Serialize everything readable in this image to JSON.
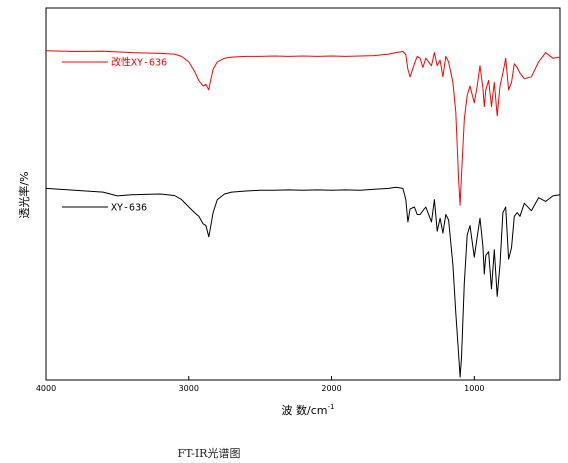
{
  "chart_data": {
    "type": "line",
    "xlabel": "波 数/cm",
    "xlabel_sup": "-1",
    "ylabel": "透光率/%",
    "caption": "FT-IR光谱图",
    "xlim": [
      4000,
      400
    ],
    "x_reversed": true,
    "x_ticks": [
      4000,
      3000,
      2000,
      1000
    ],
    "x_tick_labels": [
      "4000",
      "3000",
      "2000",
      "1000"
    ],
    "ylim": [
      0,
      100
    ],
    "y_ticks_shown": false,
    "grid": false,
    "legend_placement": "inline-left",
    "series": [
      {
        "name": "改性XY-636",
        "color": "#ff0000",
        "legend_y": 85.5,
        "x": [
          4000,
          3800,
          3600,
          3400,
          3200,
          3100,
          3050,
          3000,
          2960,
          2930,
          2900,
          2880,
          2860,
          2850,
          2830,
          2800,
          2750,
          2700,
          2600,
          2500,
          2400,
          2300,
          2200,
          2100,
          2000,
          1900,
          1800,
          1700,
          1600,
          1550,
          1500,
          1480,
          1465,
          1450,
          1420,
          1400,
          1380,
          1360,
          1340,
          1300,
          1280,
          1260,
          1240,
          1220,
          1200,
          1180,
          1150,
          1130,
          1110,
          1100,
          1090,
          1070,
          1050,
          1030,
          1000,
          980,
          960,
          940,
          930,
          920,
          900,
          880,
          860,
          840,
          820,
          800,
          780,
          760,
          740,
          720,
          700,
          680,
          650,
          600,
          550,
          500,
          450,
          400
        ],
        "y": [
          88.5,
          88.3,
          88.4,
          88.0,
          87.8,
          87.6,
          87.0,
          85.5,
          83.0,
          80.5,
          79.0,
          79.5,
          78.0,
          80.0,
          83.5,
          85.5,
          86.5,
          86.8,
          87.0,
          87.0,
          87.1,
          87.0,
          87.1,
          87.0,
          87.1,
          87.0,
          87.1,
          87.2,
          87.6,
          88.0,
          88.3,
          87.5,
          83.5,
          81.5,
          85.0,
          87.0,
          86.5,
          84.0,
          86.5,
          84.5,
          88.0,
          84.5,
          86.0,
          81.5,
          87.0,
          85.5,
          80.0,
          72.0,
          54.0,
          47.0,
          55.0,
          70.0,
          76.5,
          79.0,
          74.5,
          79.0,
          84.5,
          78.5,
          73.5,
          78.0,
          80.5,
          73.5,
          80.0,
          71.0,
          79.0,
          82.5,
          86.5,
          78.0,
          80.0,
          85.0,
          84.0,
          82.5,
          81.0,
          81.5,
          85.5,
          88.0,
          86.5,
          86.8
        ]
      },
      {
        "name": "XY-636",
        "color": "#000000",
        "legend_y": 46.5,
        "x": [
          4000,
          3800,
          3600,
          3500,
          3400,
          3200,
          3100,
          3050,
          3000,
          2960,
          2930,
          2900,
          2880,
          2860,
          2850,
          2830,
          2800,
          2750,
          2700,
          2600,
          2500,
          2400,
          2300,
          2200,
          2100,
          2000,
          1900,
          1800,
          1700,
          1600,
          1550,
          1500,
          1480,
          1465,
          1450,
          1420,
          1400,
          1380,
          1360,
          1340,
          1300,
          1280,
          1260,
          1240,
          1220,
          1200,
          1180,
          1150,
          1130,
          1110,
          1100,
          1090,
          1070,
          1050,
          1030,
          1000,
          980,
          960,
          940,
          930,
          920,
          900,
          880,
          860,
          840,
          820,
          800,
          780,
          760,
          740,
          720,
          700,
          680,
          650,
          600,
          550,
          500,
          450,
          400
        ],
        "y": [
          51.5,
          51.0,
          50.5,
          49.5,
          49.8,
          50.0,
          49.6,
          48.5,
          46.5,
          45.0,
          44.0,
          42.0,
          41.5,
          38.5,
          40.5,
          45.0,
          48.5,
          50.0,
          50.5,
          50.8,
          51.0,
          51.0,
          51.1,
          51.0,
          51.1,
          51.0,
          51.1,
          51.0,
          51.3,
          51.5,
          51.8,
          51.5,
          48.5,
          42.5,
          46.0,
          46.5,
          44.5,
          44.5,
          45.5,
          46.5,
          42.5,
          48.5,
          40.0,
          43.5,
          39.5,
          44.5,
          43.0,
          31.0,
          18.0,
          7.0,
          0.8,
          6.0,
          26.0,
          39.0,
          41.5,
          33.0,
          38.5,
          43.5,
          36.0,
          28.5,
          33.5,
          34.5,
          24.5,
          35.0,
          22.5,
          31.0,
          45.0,
          46.5,
          32.5,
          35.5,
          44.0,
          45.0,
          44.0,
          47.5,
          45.5,
          49.0,
          48.0,
          49.5,
          49.8
        ]
      }
    ]
  }
}
